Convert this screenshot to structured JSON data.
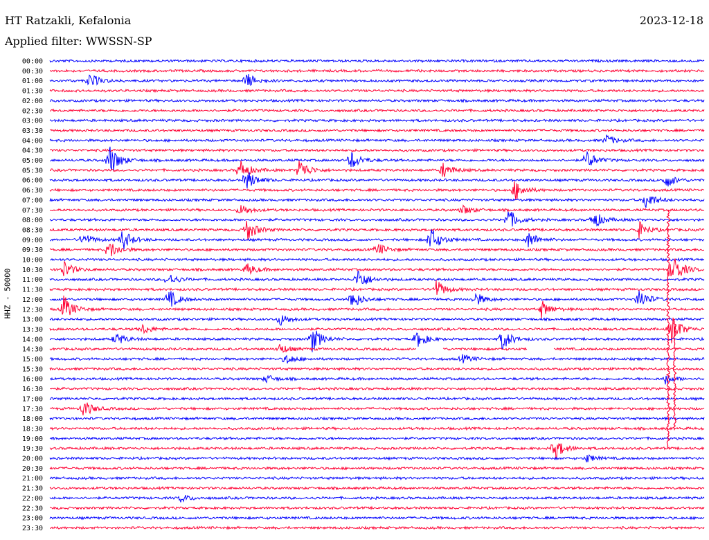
{
  "header": {
    "station": "HT Ratzakli, Kefalonia",
    "date": "2023-12-18",
    "filter": "Applied filter: WWSSN-SP",
    "channel_label": "HHZ - 50000"
  },
  "chart_data": {
    "type": "line",
    "title": "HT Ratzakli, Kefalonia",
    "ylabel": "HHZ - 50000",
    "colors": [
      "#0000ff",
      "#ff0033"
    ],
    "row_labels": [
      "00:00",
      "00:30",
      "01:00",
      "01:30",
      "02:00",
      "02:30",
      "03:00",
      "03:30",
      "04:00",
      "04:30",
      "05:00",
      "05:30",
      "06:00",
      "06:30",
      "07:00",
      "07:30",
      "08:00",
      "08:30",
      "09:00",
      "09:30",
      "10:00",
      "10:30",
      "11:00",
      "11:30",
      "12:00",
      "12:30",
      "13:00",
      "13:30",
      "14:00",
      "14:30",
      "15:00",
      "15:30",
      "16:00",
      "16:30",
      "17:00",
      "17:30",
      "18:00",
      "18:30",
      "19:00",
      "19:30",
      "20:00",
      "20:30",
      "21:00",
      "21:30",
      "22:00",
      "22:30",
      "23:00",
      "23:30"
    ],
    "x_range_minutes": [
      0,
      30
    ],
    "bursts": [
      {
        "row": 2,
        "t": 0.06,
        "amp": 12
      },
      {
        "row": 2,
        "t": 0.3,
        "amp": 12
      },
      {
        "row": 8,
        "t": 0.85,
        "amp": 8
      },
      {
        "row": 10,
        "t": 0.09,
        "amp": 26
      },
      {
        "row": 10,
        "t": 0.46,
        "amp": 14
      },
      {
        "row": 10,
        "t": 0.82,
        "amp": 14
      },
      {
        "row": 11,
        "t": 0.29,
        "amp": 16
      },
      {
        "row": 11,
        "t": 0.38,
        "amp": 18
      },
      {
        "row": 11,
        "t": 0.6,
        "amp": 12
      },
      {
        "row": 12,
        "t": 0.3,
        "amp": 16
      },
      {
        "row": 12,
        "t": 0.94,
        "amp": 12
      },
      {
        "row": 13,
        "t": 0.71,
        "amp": 16
      },
      {
        "row": 14,
        "t": 0.91,
        "amp": 14
      },
      {
        "row": 15,
        "t": 0.29,
        "amp": 10
      },
      {
        "row": 15,
        "t": 0.63,
        "amp": 8
      },
      {
        "row": 16,
        "t": 0.7,
        "amp": 16
      },
      {
        "row": 16,
        "t": 0.83,
        "amp": 14
      },
      {
        "row": 17,
        "t": 0.3,
        "amp": 18
      },
      {
        "row": 17,
        "t": 0.9,
        "amp": 12
      },
      {
        "row": 18,
        "t": 0.05,
        "amp": 10
      },
      {
        "row": 18,
        "t": 0.11,
        "amp": 16
      },
      {
        "row": 18,
        "t": 0.58,
        "amp": 22
      },
      {
        "row": 18,
        "t": 0.73,
        "amp": 14
      },
      {
        "row": 19,
        "t": 0.09,
        "amp": 14
      },
      {
        "row": 19,
        "t": 0.5,
        "amp": 10
      },
      {
        "row": 21,
        "t": 0.02,
        "amp": 14
      },
      {
        "row": 21,
        "t": 0.3,
        "amp": 10
      },
      {
        "row": 21,
        "t": 0.95,
        "amp": 28
      },
      {
        "row": 22,
        "t": 0.47,
        "amp": 18
      },
      {
        "row": 22,
        "t": 0.18,
        "amp": 10
      },
      {
        "row": 23,
        "t": 0.59,
        "amp": 14
      },
      {
        "row": 24,
        "t": 0.18,
        "amp": 16
      },
      {
        "row": 24,
        "t": 0.46,
        "amp": 16
      },
      {
        "row": 24,
        "t": 0.65,
        "amp": 10
      },
      {
        "row": 24,
        "t": 0.9,
        "amp": 16
      },
      {
        "row": 25,
        "t": 0.02,
        "amp": 22
      },
      {
        "row": 25,
        "t": 0.75,
        "amp": 14
      },
      {
        "row": 26,
        "t": 0.35,
        "amp": 10
      },
      {
        "row": 27,
        "t": 0.14,
        "amp": 8
      },
      {
        "row": 27,
        "t": 0.95,
        "amp": 22
      },
      {
        "row": 28,
        "t": 0.1,
        "amp": 10
      },
      {
        "row": 28,
        "t": 0.4,
        "amp": 20
      },
      {
        "row": 28,
        "t": 0.56,
        "amp": 14
      },
      {
        "row": 28,
        "t": 0.69,
        "amp": 18
      },
      {
        "row": 29,
        "t": 0.35,
        "amp": 8
      },
      {
        "row": 30,
        "t": 0.36,
        "amp": 8
      },
      {
        "row": 30,
        "t": 0.63,
        "amp": 6
      },
      {
        "row": 32,
        "t": 0.33,
        "amp": 6
      },
      {
        "row": 32,
        "t": 0.94,
        "amp": 8
      },
      {
        "row": 35,
        "t": 0.05,
        "amp": 14
      },
      {
        "row": 39,
        "t": 0.77,
        "amp": 18
      },
      {
        "row": 40,
        "t": 0.82,
        "amp": 6
      },
      {
        "row": 44,
        "t": 0.2,
        "amp": 6
      }
    ],
    "spikes": [
      {
        "from_row": 15,
        "to_row": 39,
        "t": 0.945,
        "color": "#ff0033"
      },
      {
        "from_row": 26,
        "to_row": 37,
        "t": 0.955,
        "color": "#ff0033"
      }
    ],
    "gaps": [
      {
        "row": 29,
        "t0": 0.56,
        "t1": 0.6
      },
      {
        "row": 29,
        "t0": 0.73,
        "t1": 0.77
      }
    ]
  }
}
